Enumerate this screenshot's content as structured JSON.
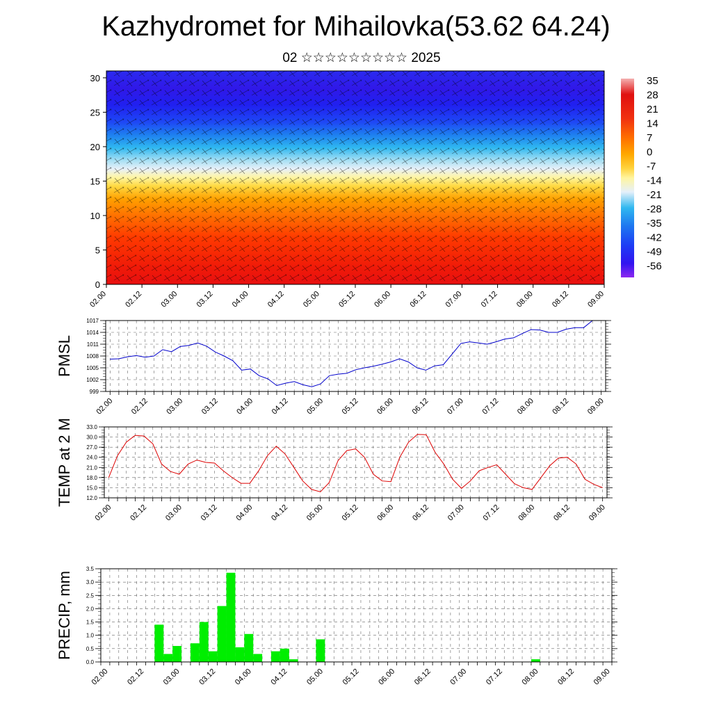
{
  "header": {
    "title": "Kazhydromet for Mihailovka(53.62 64.24)",
    "subtitle": "02 ☆☆☆☆☆☆☆☆☆ 2025"
  },
  "chart_data": [
    {
      "type": "heatmap",
      "title": "Kazhydromet for Mihailovka(53.62 64.24)",
      "subtitle": "02 ☆☆☆☆☆☆☆☆☆ 2025",
      "x_ticks": [
        "02.00",
        "02.12",
        "03.00",
        "03.12",
        "04.00",
        "04.12",
        "05.00",
        "05.12",
        "06.00",
        "06.12",
        "07.00",
        "07.12",
        "08.00",
        "08.12",
        "09.00"
      ],
      "y_ticks": [
        0,
        5,
        10,
        15,
        20,
        25,
        30
      ],
      "ylim": [
        0,
        31
      ],
      "colorbar_labels": [
        "35",
        "28",
        "21",
        "14",
        "7",
        "0",
        "-7",
        "-14",
        "-21",
        "-28",
        "-35",
        "-42",
        "-49",
        "-56"
      ],
      "colorbar_colors": [
        "#f4a0a0",
        "#e01010",
        "#f23a0a",
        "#ff7800",
        "#ffa800",
        "#ffd23c",
        "#fff5a0",
        "#e6f0fa",
        "#90d8f0",
        "#1eb4f0",
        "#1e78f0",
        "#1e3cf5",
        "#3214f0",
        "#8c28f0"
      ]
    },
    {
      "type": "line",
      "ylabel": "PMSL",
      "ylim": [
        999,
        1017
      ],
      "y_ticks": [
        "999",
        "1002",
        "1005",
        "1008",
        "1011",
        "1014",
        "1017"
      ],
      "x_ticks": [
        "02.00",
        "02.12",
        "03.00",
        "03.12",
        "04.00",
        "04.12",
        "05.00",
        "05.12",
        "06.00",
        "06.12",
        "07.00",
        "07.12",
        "08.00",
        "08.12",
        "09.00"
      ],
      "line_color": "#0000cc",
      "values": [
        1007.2,
        1007.3,
        1007.8,
        1008.1,
        1007.7,
        1008.0,
        1009.6,
        1009.1,
        1010.4,
        1010.7,
        1011.3,
        1010.5,
        1009.0,
        1008.0,
        1006.8,
        1004.4,
        1004.7,
        1003.0,
        1002.2,
        1000.5,
        1001.1,
        1001.5,
        1000.7,
        1000.2,
        1000.9,
        1003.0,
        1003.4,
        1003.6,
        1004.5,
        1005.0,
        1005.4,
        1005.9,
        1006.5,
        1007.3,
        1006.5,
        1005.0,
        1004.4,
        1005.5,
        1005.8,
        1008.5,
        1011.2,
        1011.6,
        1011.3,
        1011.0,
        1011.6,
        1012.3,
        1012.6,
        1013.7,
        1014.7,
        1014.6,
        1014.0,
        1014.0,
        1014.8,
        1015.2,
        1015.2,
        1017.0
      ]
    },
    {
      "type": "line",
      "ylabel": "TEMP at 2 M",
      "ylim": [
        12,
        33
      ],
      "y_ticks": [
        "12.0",
        "15.0",
        "18.0",
        "21.0",
        "24.0",
        "27.0",
        "30.0",
        "33.0"
      ],
      "x_ticks": [
        "02.00",
        "02.12",
        "03.00",
        "03.12",
        "04.00",
        "04.12",
        "05.00",
        "05.12",
        "06.00",
        "06.12",
        "07.00",
        "07.12",
        "08.00",
        "08.12",
        "09.00"
      ],
      "line_color": "#dd0000",
      "values": [
        18.0,
        24.5,
        28.5,
        30.5,
        30.3,
        28.0,
        22.0,
        19.8,
        19.0,
        22.0,
        23.2,
        22.5,
        22.3,
        20.0,
        18.0,
        16.3,
        16.3,
        20.0,
        24.5,
        27.3,
        25.0,
        21.0,
        17.0,
        14.5,
        13.8,
        16.5,
        23.0,
        26.0,
        26.5,
        24.0,
        19.0,
        17.0,
        16.8,
        24.0,
        28.5,
        30.8,
        30.7,
        25.5,
        22.0,
        17.5,
        14.8,
        17.0,
        20.0,
        21.0,
        21.8,
        19.0,
        16.2,
        15.0,
        14.5,
        18.0,
        21.5,
        23.8,
        24.0,
        22.0,
        17.5,
        16.0,
        15.0
      ]
    },
    {
      "type": "bar",
      "ylabel": "PRECIP, mm",
      "ylim": [
        0,
        3.5
      ],
      "y_ticks": [
        "0.0",
        "0.5",
        "1.0",
        "1.5",
        "2.0",
        "2.5",
        "3.0",
        "3.5"
      ],
      "x_ticks": [
        "02.00",
        "02.12",
        "03.00",
        "03.12",
        "04.00",
        "04.12",
        "05.00",
        "05.12",
        "06.00",
        "06.12",
        "07.00",
        "07.12",
        "08.00",
        "08.12",
        "09.00"
      ],
      "bar_color": "#00ee00",
      "values": [
        0,
        0,
        0,
        0,
        0,
        0,
        1.4,
        0.3,
        0.6,
        0,
        0.7,
        1.5,
        0.4,
        2.1,
        3.35,
        0.55,
        1.05,
        0.3,
        0,
        0.4,
        0.5,
        0.1,
        0,
        0,
        0.85,
        0,
        0,
        0,
        0,
        0,
        0,
        0,
        0,
        0,
        0,
        0,
        0,
        0,
        0,
        0,
        0,
        0,
        0,
        0,
        0,
        0,
        0,
        0,
        0.1,
        0,
        0,
        0,
        0,
        0,
        0,
        0
      ]
    }
  ]
}
